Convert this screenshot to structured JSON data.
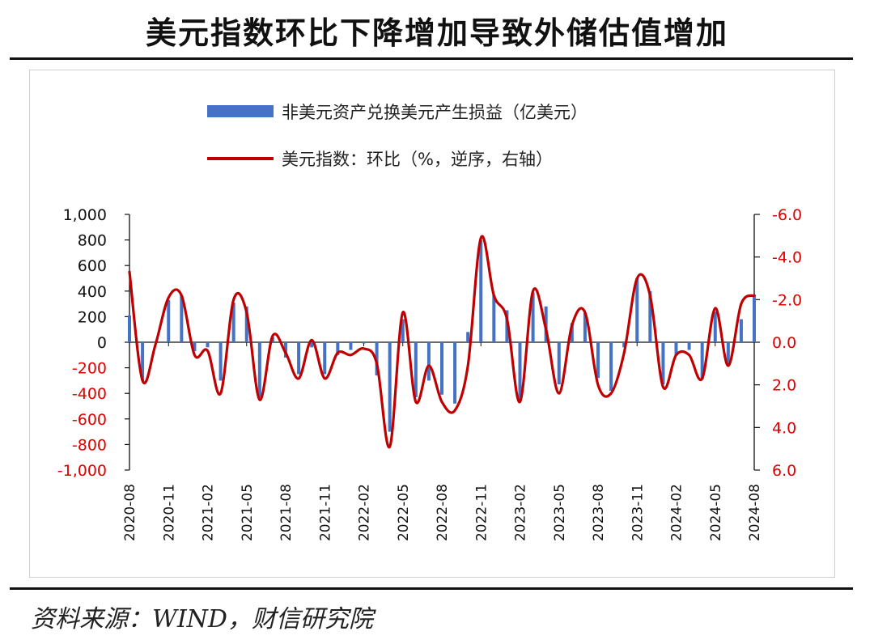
{
  "title": "美元指数环比下降增加导致外储估值增加",
  "source": "资料来源：WIND，财信研究院",
  "chart_data": {
    "type": "bar+line",
    "legend": [
      {
        "label": "非美元资产兑换美元产生损益（亿美元）",
        "kind": "bar",
        "color": "#4472C4"
      },
      {
        "label": "美元指数：环比（%，逆序，右轴）",
        "kind": "line",
        "color": "#C00000"
      }
    ],
    "categories": [
      "2020-08",
      "2020-09",
      "2020-10",
      "2020-11",
      "2020-12",
      "2021-01",
      "2021-02",
      "2021-03",
      "2021-04",
      "2021-05",
      "2021-06",
      "2021-07",
      "2021-08",
      "2021-09",
      "2021-10",
      "2021-11",
      "2021-12",
      "2022-01",
      "2022-02",
      "2022-03",
      "2022-04",
      "2022-05",
      "2022-06",
      "2022-07",
      "2022-08",
      "2022-09",
      "2022-10",
      "2022-11",
      "2022-12",
      "2023-01",
      "2023-02",
      "2023-03",
      "2023-04",
      "2023-05",
      "2023-06",
      "2023-07",
      "2023-08",
      "2023-09",
      "2023-10",
      "2023-11",
      "2023-12",
      "2024-01",
      "2024-02",
      "2024-03",
      "2024-04",
      "2024-05",
      "2024-06",
      "2024-07",
      "2024-08"
    ],
    "x_tick_labels": [
      "2020-08",
      "2020-11",
      "2021-02",
      "2021-05",
      "2021-08",
      "2021-11",
      "2022-02",
      "2022-05",
      "2022-08",
      "2022-11",
      "2023-02",
      "2023-05",
      "2023-08",
      "2023-11",
      "2024-02",
      "2024-05",
      "2024-08"
    ],
    "bar_values": [
      210,
      -300,
      0,
      330,
      370,
      -70,
      -40,
      -300,
      310,
      280,
      -430,
      40,
      -120,
      -250,
      -40,
      -250,
      -100,
      -60,
      -10,
      -260,
      -700,
      180,
      -430,
      -300,
      -410,
      -480,
      80,
      800,
      370,
      250,
      -450,
      390,
      280,
      -330,
      150,
      230,
      -280,
      -380,
      -40,
      500,
      400,
      -330,
      -100,
      -60,
      -290,
      240,
      -180,
      180,
      370
    ],
    "line_values": [
      -3.3,
      1.8,
      0.1,
      -2.1,
      -2.2,
      0.6,
      0.4,
      2.4,
      -2.0,
      -1.4,
      2.7,
      -0.3,
      0.5,
      1.7,
      -0.1,
      1.7,
      0.5,
      0.6,
      0.3,
      1.0,
      4.9,
      -1.4,
      2.8,
      1.1,
      2.8,
      3.2,
      1.1,
      -4.9,
      -2.2,
      -1.1,
      2.8,
      -2.4,
      -0.6,
      2.4,
      -0.8,
      -1.4,
      2.0,
      2.4,
      0.5,
      -3.0,
      -2.2,
      2.1,
      0.6,
      0.6,
      1.7,
      -1.6,
      1.1,
      -1.8,
      -2.2
    ],
    "y_left": {
      "min": -1000,
      "max": 1000,
      "ticks": [
        "1,000",
        "800",
        "600",
        "400",
        "200",
        "0",
        "-200",
        "-400",
        "-600",
        "-800",
        "-1,000"
      ]
    },
    "y_right": {
      "min": -6.0,
      "max": 6.0,
      "inverted": true,
      "ticks": [
        "-6.0",
        "-4.0",
        "-2.0",
        "0.0",
        "2.0",
        "4.0",
        "6.0"
      ]
    },
    "colors": {
      "bar": "#4472C4",
      "line": "#C00000",
      "negative_tick": "#E00000",
      "positive_tick": "#111111"
    }
  }
}
